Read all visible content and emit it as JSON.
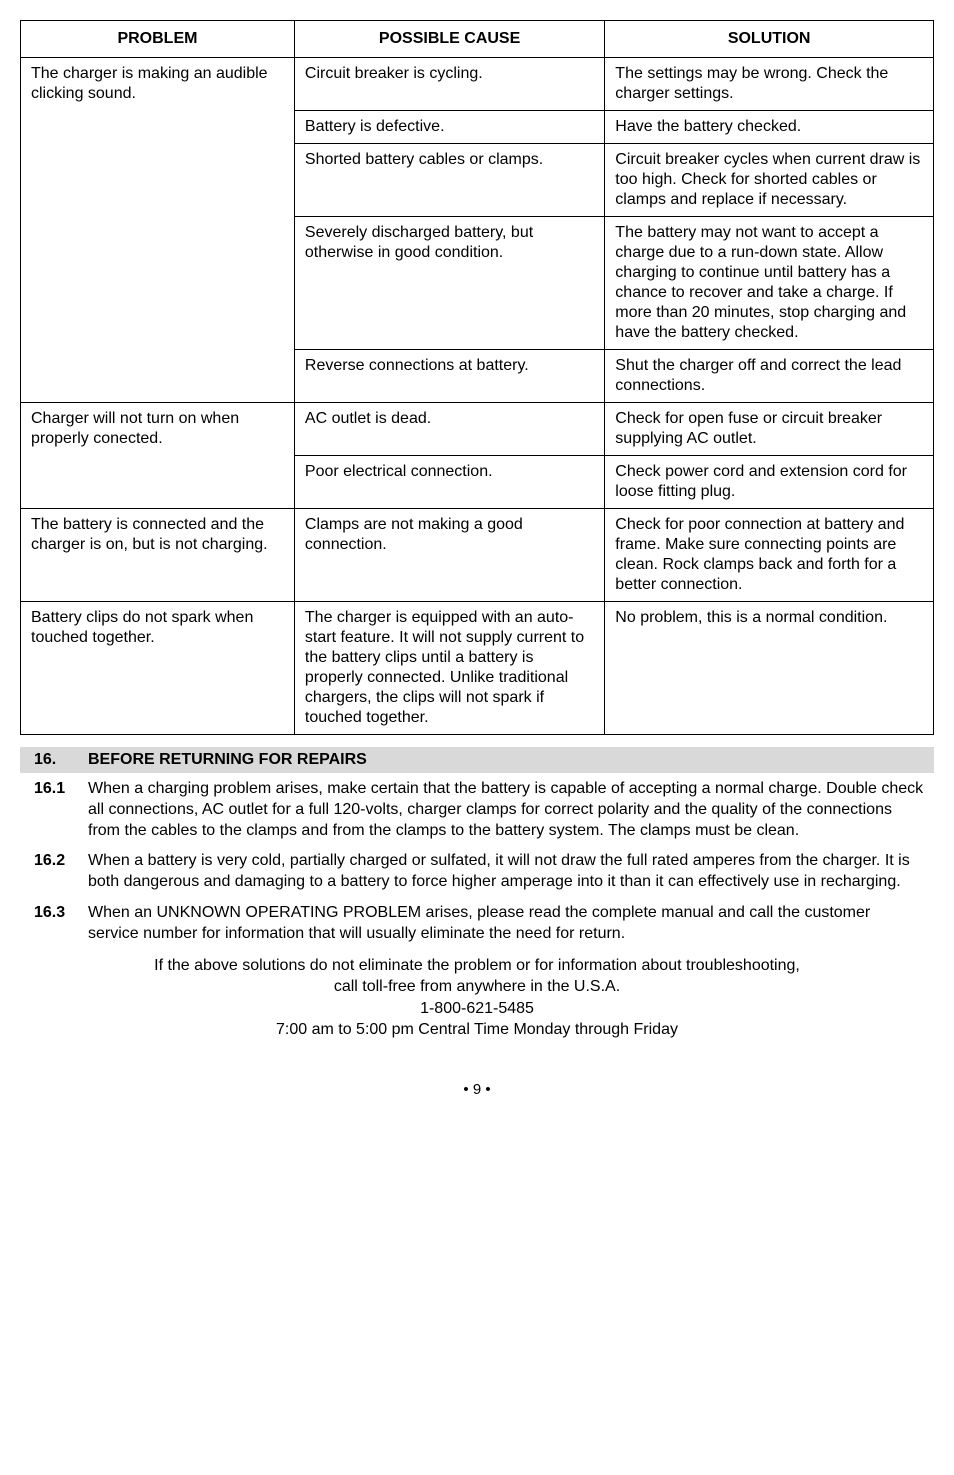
{
  "table": {
    "headers": [
      "PROBLEM",
      "POSSIBLE CAUSE",
      "SOLUTION"
    ],
    "groups": [
      {
        "problem": "The charger is making an audible clicking sound.",
        "rows": [
          {
            "cause": "Circuit breaker is cycling.",
            "solution": "The settings may be wrong. Check the charger settings."
          },
          {
            "cause": "Battery is defective.",
            "solution": "Have the battery checked."
          },
          {
            "cause": "Shorted battery cables or clamps.",
            "solution": "Circuit breaker cycles when current draw is too high. Check for shorted cables or clamps and replace if necessary."
          },
          {
            "cause": "Severely discharged battery, but otherwise in good condition.",
            "solution": "The battery may not want to accept a charge due to a run-down state. Allow charging to continue until battery has a chance to recover and take a charge. If more than 20 minutes, stop charging and have the battery checked."
          },
          {
            "cause": "Reverse connections at battery.",
            "solution": "Shut the charger off and correct the lead connections."
          }
        ]
      },
      {
        "problem": "Charger will not turn on when properly conected.",
        "rows": [
          {
            "cause": "AC outlet is dead.",
            "solution": "Check for open fuse or circuit breaker supplying AC outlet."
          },
          {
            "cause": "Poor electrical connection.",
            "solution": "Check power cord and extension cord for loose fitting plug."
          }
        ]
      },
      {
        "problem": "The battery is connected and the charger is on, but is not charging.",
        "rows": [
          {
            "cause": "Clamps are not making a good connection.",
            "solution": "Check for poor connection at battery and frame. Make sure connecting points are clean. Rock clamps back and forth for a better connection."
          }
        ]
      },
      {
        "problem": "Battery clips do not spark when touched together.",
        "rows": [
          {
            "cause": "The charger is equipped with an auto-start feature. It will not supply current to the battery clips until a battery is properly connected. Unlike traditional chargers, the clips will not spark if touched together.",
            "solution": "No problem, this is a normal condition."
          }
        ]
      }
    ]
  },
  "section": {
    "number": "16.",
    "title": "BEFORE RETURNING FOR REPAIRS"
  },
  "paragraphs": [
    {
      "num": "16.1",
      "text": "When a charging problem arises, make certain that the battery is capable of accepting a normal charge. Double check all connections, AC outlet for a full 120-volts, charger clamps for correct polarity and the quality of the connections from the cables to the clamps and from the clamps to the battery system. The clamps must be clean."
    },
    {
      "num": "16.2",
      "text": "When a battery is very cold, partially charged or sulfated, it will not draw the full rated amperes from the charger. It is both dangerous and damaging to a battery to force higher amperage into it than it can effectively use in recharging."
    },
    {
      "num": "16.3",
      "text": "When an UNKNOWN OPERATING PROBLEM arises, please read the complete manual and call the customer service number for information that will usually eliminate the need for return."
    }
  ],
  "footer": {
    "line1": "If the above solutions do not eliminate the problem or for information about troubleshooting,",
    "line2": "call toll-free from anywhere in the U.S.A.",
    "line3": "1-800-621-5485",
    "line4": "7:00 am to 5:00 pm Central Time Monday through Friday"
  },
  "pageNumber": "• 9 •"
}
